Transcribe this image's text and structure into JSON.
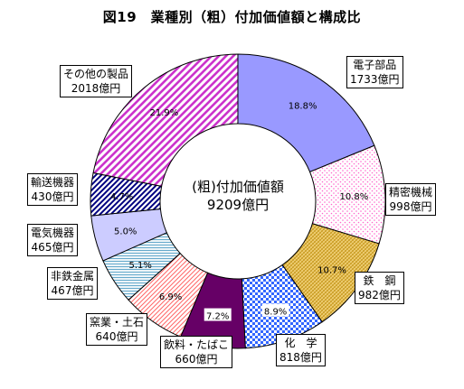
{
  "title": "図19　業種別（粗）付加価値額と構成比",
  "center": {
    "line1": "(粗)付加価値額",
    "line2": "9209億円"
  },
  "colors": {
    "電子部品": "#9999ff",
    "精密機械": "#ff66cc",
    "鉄鋼": "#e8c04a",
    "化学": "#3366ff",
    "飲料・たばこ": "#660066",
    "窯業・土石": "#ff6666",
    "非鉄金属": "#66aacc",
    "電気機器": "#ccccff",
    "輸送機器": "#000080",
    "その他の製品": "#cc33cc"
  },
  "chart_data": {
    "type": "pie",
    "categories": [
      "電子部品",
      "精密機械",
      "鉄　鋼",
      "化　学",
      "飲料・たばこ",
      "窯業・土石",
      "非鉄金属",
      "電気機器",
      "輸送機器",
      "その他の製品"
    ],
    "values": [
      1733,
      998,
      982,
      818,
      660,
      640,
      467,
      465,
      430,
      2018
    ],
    "value_labels": [
      "1733億円",
      "998億円",
      "982億円",
      "818億円",
      "660億円",
      "640億円",
      "467億円",
      "465億円",
      "430億円",
      "2018億円"
    ],
    "percent_labels": [
      "18.8%",
      "10.8%",
      "10.7%",
      "8.9%",
      "7.2%",
      "6.9%",
      "5.1%",
      "5.0%",
      "4.7%",
      "21.9%"
    ],
    "unit": "億円",
    "donut": true
  }
}
